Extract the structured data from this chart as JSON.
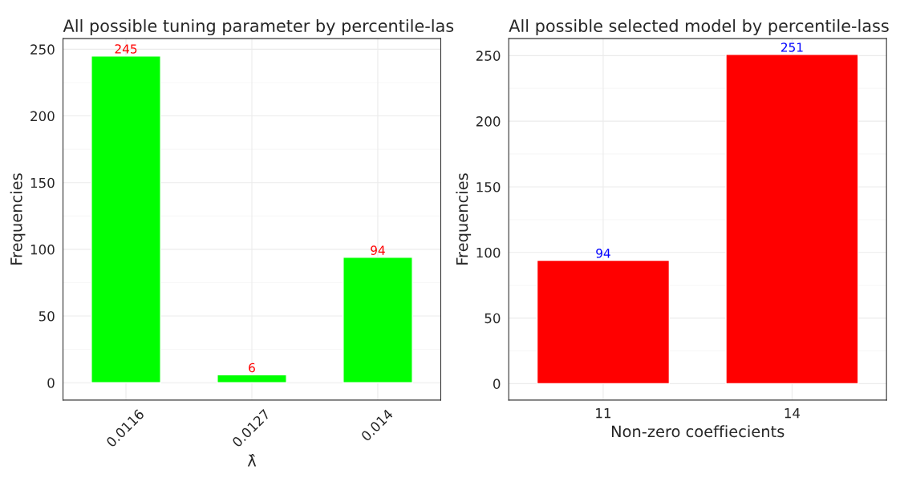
{
  "chart_data": [
    {
      "type": "bar",
      "title": "All possible tuning parameter by percentile-las",
      "xlabel": "λ̂",
      "ylabel": "Frequencies",
      "categories": [
        "0.0116",
        "0.0127",
        "0.014"
      ],
      "values": [
        245,
        6,
        94
      ],
      "color": "#00ff00",
      "ylim": [
        -13,
        258
      ],
      "yticks": [
        0,
        50,
        100,
        150,
        200,
        250
      ],
      "grid": true,
      "data_labels": true
    },
    {
      "type": "bar",
      "title": "All possible selected model by percentile-lass",
      "xlabel": "Non-zero coeffiecients",
      "ylabel": "Frequencies",
      "categories": [
        "11",
        "14"
      ],
      "values": [
        94,
        251
      ],
      "color": "#ff0000",
      "ylim": [
        -12.5,
        263
      ],
      "yticks": [
        0,
        50,
        100,
        150,
        200,
        250
      ],
      "grid": true,
      "data_labels": true
    }
  ]
}
